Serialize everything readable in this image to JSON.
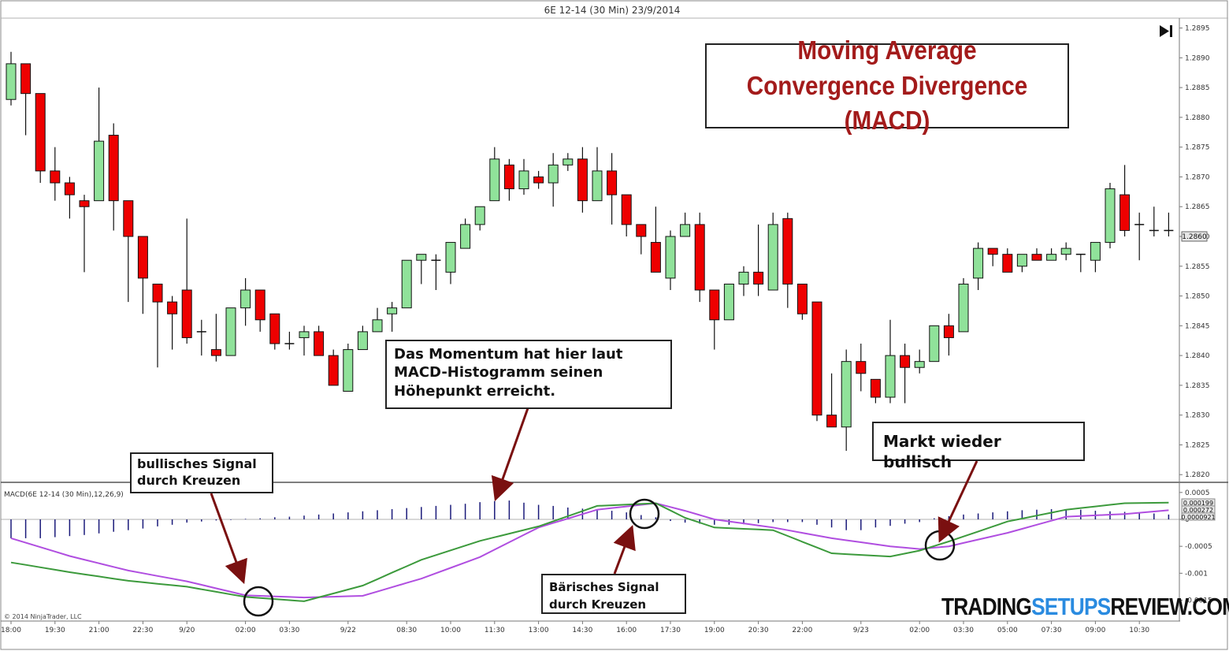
{
  "window": {
    "title": "6E 12-14 (30 Min)  23/9/2014"
  },
  "title_box": {
    "line1": "Moving Average",
    "line2": "Convergence Divergence (MACD)"
  },
  "annotations": {
    "momentum": "Das Momentum hat hier laut\nMACD-Histogramm seinen\nHöhepunkt erreicht.",
    "bullish_cross": "bullisches Signal\ndurch Kreuzen",
    "bearish_cross": "Bärisches Signal\ndurch Kreuzen",
    "market_bullish": "Markt wieder bullisch"
  },
  "copyright": "© 2014 NinjaTrader, LLC",
  "brand": {
    "part1": "TRADING",
    "part2": "SETUPS",
    "part3": "REVIEW.COM"
  },
  "play_icon": "skip-forward-icon",
  "colors": {
    "up": "#90e29a",
    "down": "#ee0000",
    "macd": "#3c9a3c",
    "signal": "#b04ee0",
    "histogram": "#1a1a7a",
    "title": "#a31b1b",
    "arrow": "#7a1010",
    "brand_accent": "#2a8be0"
  },
  "chart_data": [
    {
      "type": "candlestick",
      "xlabel": "",
      "ylabel": "",
      "ylim": [
        1.28195,
        1.2896
      ],
      "ytick_labels": [
        "1.2895",
        "1.2890",
        "1.2885",
        "1.2880",
        "1.2875",
        "1.2870",
        "1.2865",
        "1.2860",
        "1.2855",
        "1.2850",
        "1.2845",
        "1.2840",
        "1.2835",
        "1.2830",
        "1.2825",
        "1.2820"
      ],
      "last_price_label": "1.2860",
      "last_price": 1.286,
      "time_labels": [
        "18:00",
        "19:30",
        "21:00",
        "22:30",
        "9/20",
        "02:00",
        "03:30",
        "9/22",
        "08:30",
        "10:00",
        "11:30",
        "13:00",
        "14:30",
        "16:00",
        "17:30",
        "19:00",
        "20:30",
        "22:00",
        "9/23",
        "02:00",
        "03:30",
        "05:00",
        "07:30",
        "09:00",
        "10:30"
      ],
      "time_label_index": [
        0,
        3,
        6,
        9,
        12,
        16,
        19,
        23,
        27,
        30,
        33,
        36,
        39,
        42,
        45,
        48,
        51,
        54,
        58,
        62,
        65,
        68,
        71,
        74,
        77
      ],
      "candles": [
        {
          "o": 1.2883,
          "h": 1.2891,
          "l": 1.2882,
          "c": 1.2889
        },
        {
          "o": 1.2889,
          "h": 1.2889,
          "l": 1.2877,
          "c": 1.2884
        },
        {
          "o": 1.2884,
          "h": 1.2884,
          "l": 1.2869,
          "c": 1.2871
        },
        {
          "o": 1.2871,
          "h": 1.2875,
          "l": 1.2866,
          "c": 1.2869
        },
        {
          "o": 1.2869,
          "h": 1.287,
          "l": 1.2863,
          "c": 1.2867
        },
        {
          "o": 1.2866,
          "h": 1.2867,
          "l": 1.2854,
          "c": 1.2865
        },
        {
          "o": 1.2866,
          "h": 1.2885,
          "l": 1.2866,
          "c": 1.2876
        },
        {
          "o": 1.2877,
          "h": 1.2879,
          "l": 1.2861,
          "c": 1.2866
        },
        {
          "o": 1.2866,
          "h": 1.2866,
          "l": 1.2849,
          "c": 1.286
        },
        {
          "o": 1.286,
          "h": 1.286,
          "l": 1.2847,
          "c": 1.2853
        },
        {
          "o": 1.2852,
          "h": 1.2852,
          "l": 1.2838,
          "c": 1.2849
        },
        {
          "o": 1.2849,
          "h": 1.285,
          "l": 1.2841,
          "c": 1.2847
        },
        {
          "o": 1.2851,
          "h": 1.2863,
          "l": 1.2842,
          "c": 1.2843
        },
        {
          "o": 1.2844,
          "h": 1.2846,
          "l": 1.284,
          "c": 1.2844
        },
        {
          "o": 1.2841,
          "h": 1.2847,
          "l": 1.2839,
          "c": 1.284
        },
        {
          "o": 1.284,
          "h": 1.2848,
          "l": 1.284,
          "c": 1.2848
        },
        {
          "o": 1.2848,
          "h": 1.2853,
          "l": 1.2845,
          "c": 1.2851
        },
        {
          "o": 1.2851,
          "h": 1.2851,
          "l": 1.2844,
          "c": 1.2846
        },
        {
          "o": 1.2847,
          "h": 1.2847,
          "l": 1.2841,
          "c": 1.2842
        },
        {
          "o": 1.2842,
          "h": 1.2844,
          "l": 1.2841,
          "c": 1.2842
        },
        {
          "o": 1.2843,
          "h": 1.2845,
          "l": 1.284,
          "c": 1.2844
        },
        {
          "o": 1.2844,
          "h": 1.2845,
          "l": 1.284,
          "c": 1.284
        },
        {
          "o": 1.284,
          "h": 1.2841,
          "l": 1.2835,
          "c": 1.2835
        },
        {
          "o": 1.2834,
          "h": 1.2842,
          "l": 1.2834,
          "c": 1.2841
        },
        {
          "o": 1.2841,
          "h": 1.2845,
          "l": 1.2841,
          "c": 1.2844
        },
        {
          "o": 1.2844,
          "h": 1.2848,
          "l": 1.2844,
          "c": 1.2846
        },
        {
          "o": 1.2847,
          "h": 1.2849,
          "l": 1.2844,
          "c": 1.2848
        },
        {
          "o": 1.2848,
          "h": 1.2856,
          "l": 1.2848,
          "c": 1.2856
        },
        {
          "o": 1.2856,
          "h": 1.2857,
          "l": 1.2852,
          "c": 1.2857
        },
        {
          "o": 1.2856,
          "h": 1.2857,
          "l": 1.2851,
          "c": 1.2856
        },
        {
          "o": 1.2854,
          "h": 1.2859,
          "l": 1.2852,
          "c": 1.2859
        },
        {
          "o": 1.2858,
          "h": 1.2863,
          "l": 1.2858,
          "c": 1.2862
        },
        {
          "o": 1.2862,
          "h": 1.2865,
          "l": 1.2861,
          "c": 1.2865
        },
        {
          "o": 1.2866,
          "h": 1.2875,
          "l": 1.2866,
          "c": 1.2873
        },
        {
          "o": 1.2872,
          "h": 1.2873,
          "l": 1.2866,
          "c": 1.2868
        },
        {
          "o": 1.2868,
          "h": 1.2873,
          "l": 1.2867,
          "c": 1.2871
        },
        {
          "o": 1.287,
          "h": 1.2871,
          "l": 1.2868,
          "c": 1.2869
        },
        {
          "o": 1.2869,
          "h": 1.2874,
          "l": 1.2865,
          "c": 1.2872
        },
        {
          "o": 1.2872,
          "h": 1.2874,
          "l": 1.2871,
          "c": 1.2873
        },
        {
          "o": 1.2873,
          "h": 1.2875,
          "l": 1.2864,
          "c": 1.2866
        },
        {
          "o": 1.2866,
          "h": 1.2875,
          "l": 1.2866,
          "c": 1.2871
        },
        {
          "o": 1.2871,
          "h": 1.2874,
          "l": 1.2862,
          "c": 1.2867
        },
        {
          "o": 1.2867,
          "h": 1.2867,
          "l": 1.286,
          "c": 1.2862
        },
        {
          "o": 1.2862,
          "h": 1.2862,
          "l": 1.2857,
          "c": 1.286
        },
        {
          "o": 1.2859,
          "h": 1.2865,
          "l": 1.2854,
          "c": 1.2854
        },
        {
          "o": 1.2853,
          "h": 1.2861,
          "l": 1.2851,
          "c": 1.286
        },
        {
          "o": 1.286,
          "h": 1.2864,
          "l": 1.286,
          "c": 1.2862
        },
        {
          "o": 1.2862,
          "h": 1.2864,
          "l": 1.2849,
          "c": 1.2851
        },
        {
          "o": 1.2851,
          "h": 1.2851,
          "l": 1.2841,
          "c": 1.2846
        },
        {
          "o": 1.2846,
          "h": 1.2852,
          "l": 1.2846,
          "c": 1.2852
        },
        {
          "o": 1.2852,
          "h": 1.2855,
          "l": 1.285,
          "c": 1.2854
        },
        {
          "o": 1.2854,
          "h": 1.2862,
          "l": 1.285,
          "c": 1.2852
        },
        {
          "o": 1.2851,
          "h": 1.2864,
          "l": 1.2851,
          "c": 1.2862
        },
        {
          "o": 1.2863,
          "h": 1.2864,
          "l": 1.2848,
          "c": 1.2852
        },
        {
          "o": 1.2852,
          "h": 1.2852,
          "l": 1.2846,
          "c": 1.2847
        },
        {
          "o": 1.2849,
          "h": 1.2849,
          "l": 1.2829,
          "c": 1.283
        },
        {
          "o": 1.283,
          "h": 1.2837,
          "l": 1.2828,
          "c": 1.2828
        },
        {
          "o": 1.2828,
          "h": 1.2841,
          "l": 1.2824,
          "c": 1.2839
        },
        {
          "o": 1.2839,
          "h": 1.2842,
          "l": 1.2834,
          "c": 1.2837
        },
        {
          "o": 1.2836,
          "h": 1.2836,
          "l": 1.2832,
          "c": 1.2833
        },
        {
          "o": 1.2833,
          "h": 1.2846,
          "l": 1.2832,
          "c": 1.284
        },
        {
          "o": 1.284,
          "h": 1.2842,
          "l": 1.2832,
          "c": 1.2838
        },
        {
          "o": 1.2838,
          "h": 1.2841,
          "l": 1.2837,
          "c": 1.2839
        },
        {
          "o": 1.2839,
          "h": 1.2845,
          "l": 1.2839,
          "c": 1.2845
        },
        {
          "o": 1.2845,
          "h": 1.2847,
          "l": 1.284,
          "c": 1.2843
        },
        {
          "o": 1.2844,
          "h": 1.2853,
          "l": 1.2844,
          "c": 1.2852
        },
        {
          "o": 1.2853,
          "h": 1.2859,
          "l": 1.2851,
          "c": 1.2858
        },
        {
          "o": 1.2858,
          "h": 1.2858,
          "l": 1.2855,
          "c": 1.2857
        },
        {
          "o": 1.2857,
          "h": 1.2858,
          "l": 1.2854,
          "c": 1.2854
        },
        {
          "o": 1.2855,
          "h": 1.2857,
          "l": 1.2854,
          "c": 1.2857
        },
        {
          "o": 1.2857,
          "h": 1.2858,
          "l": 1.2856,
          "c": 1.2856
        },
        {
          "o": 1.2856,
          "h": 1.2858,
          "l": 1.2856,
          "c": 1.2857
        },
        {
          "o": 1.2857,
          "h": 1.2859,
          "l": 1.2856,
          "c": 1.2858
        },
        {
          "o": 1.2857,
          "h": 1.2857,
          "l": 1.2854,
          "c": 1.2857
        },
        {
          "o": 1.2856,
          "h": 1.2859,
          "l": 1.2854,
          "c": 1.2859
        },
        {
          "o": 1.2859,
          "h": 1.2869,
          "l": 1.2858,
          "c": 1.2868
        },
        {
          "o": 1.2867,
          "h": 1.2872,
          "l": 1.286,
          "c": 1.2861
        },
        {
          "o": 1.2862,
          "h": 1.2864,
          "l": 1.2856,
          "c": 1.2862
        },
        {
          "o": 1.2861,
          "h": 1.2865,
          "l": 1.286,
          "c": 1.2861
        },
        {
          "o": 1.2861,
          "h": 1.2864,
          "l": 1.286,
          "c": 1.2861
        }
      ]
    },
    {
      "type": "line",
      "title": "MACD(6E 12-14 (30 Min),12,26,9)",
      "ylim": [
        -0.0018,
        0.0006
      ],
      "ytick_labels": [
        "0.0005",
        "0",
        "-0.0005",
        "-0.001",
        "-0.0015"
      ],
      "ytick_values": [
        0.0005,
        0,
        -0.0005,
        -0.001,
        -0.0015
      ],
      "value_labels": [
        "0.000199",
        "0.000272",
        "0.0000921"
      ],
      "x_count": 80,
      "macd_points": [
        [
          0,
          -0.0008
        ],
        [
          4,
          -0.00098
        ],
        [
          8,
          -0.00114
        ],
        [
          12,
          -0.00125
        ],
        [
          16,
          -0.00144
        ],
        [
          20,
          -0.00152
        ],
        [
          24,
          -0.00123
        ],
        [
          28,
          -0.00075
        ],
        [
          32,
          -0.0004
        ],
        [
          36,
          -0.00013
        ],
        [
          40,
          0.00025
        ],
        [
          44,
          0.0003
        ],
        [
          46,
          3e-05
        ],
        [
          48,
          -0.00015
        ],
        [
          52,
          -0.0002
        ],
        [
          56,
          -0.00063
        ],
        [
          60,
          -0.00069
        ],
        [
          62,
          -0.00058
        ],
        [
          64,
          -0.00041
        ],
        [
          68,
          -4e-05
        ],
        [
          72,
          0.00018
        ],
        [
          76,
          0.0003
        ],
        [
          79,
          0.00031
        ]
      ],
      "signal_points": [
        [
          0,
          -0.00035
        ],
        [
          4,
          -0.00068
        ],
        [
          8,
          -0.00095
        ],
        [
          12,
          -0.00115
        ],
        [
          16,
          -0.00141
        ],
        [
          20,
          -0.00145
        ],
        [
          24,
          -0.00142
        ],
        [
          28,
          -0.0011
        ],
        [
          32,
          -0.0007
        ],
        [
          36,
          -0.00015
        ],
        [
          40,
          0.00018
        ],
        [
          44,
          0.0003
        ],
        [
          46,
          0.00016
        ],
        [
          48,
          0.0
        ],
        [
          52,
          -0.00015
        ],
        [
          56,
          -0.00035
        ],
        [
          60,
          -0.0005
        ],
        [
          62,
          -0.00055
        ],
        [
          64,
          -0.0005
        ],
        [
          68,
          -0.00025
        ],
        [
          72,
          5e-05
        ],
        [
          76,
          0.0001
        ],
        [
          79,
          0.00017
        ]
      ],
      "histogram": [
        -0.00035,
        -0.00035,
        -0.00035,
        -0.00033,
        -0.00031,
        -0.00029,
        -0.00026,
        -0.00023,
        -0.0002,
        -0.00017,
        -0.00013,
        -0.0001,
        -6e-05,
        -4e-05,
        -2e-05,
        -1e-05,
        1e-05,
        2e-05,
        4e-05,
        5e-05,
        7e-05,
        9e-05,
        0.00011,
        0.00013,
        0.00015,
        0.00017,
        0.00019,
        0.00021,
        0.00023,
        0.00025,
        0.00027,
        0.00029,
        0.00032,
        0.00034,
        0.00035,
        0.00031,
        0.00027,
        0.00025,
        0.00022,
        0.0002,
        0.00019,
        0.00016,
        0.00013,
        8e-05,
        4e-05,
        -3e-05,
        -6e-05,
        -8e-05,
        -0.0001,
        -0.0001,
        -9e-05,
        -7e-05,
        -5e-05,
        -5e-05,
        -5e-05,
        -0.0001,
        -0.00015,
        -0.0002,
        -0.0002,
        -0.00015,
        -0.00012,
        -8e-05,
        -5e-05,
        2e-05,
        6e-05,
        9e-05,
        0.00011,
        0.00013,
        0.00015,
        0.00017,
        0.00018,
        0.00019,
        0.00018,
        0.00018,
        0.00016,
        0.00015,
        0.00014,
        0.00013,
        0.00011,
        9e-05
      ]
    }
  ]
}
